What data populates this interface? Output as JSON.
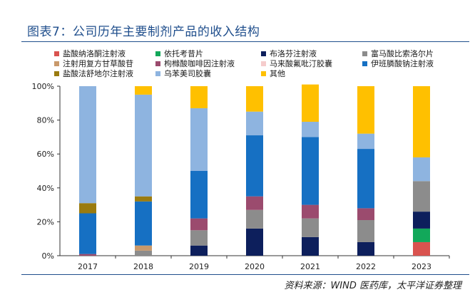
{
  "figure": {
    "title": "图表7：公司历年主要制剂产品的收入结构",
    "source": "资料来源：WIND 医药库，太平洋证券整理"
  },
  "chart_data": {
    "type": "bar",
    "stacked": true,
    "categories": [
      "2017",
      "2018",
      "2019",
      "2020",
      "2021",
      "2022",
      "2023"
    ],
    "ylim": [
      0,
      100
    ],
    "yticks": [
      0,
      20,
      40,
      60,
      80,
      100
    ],
    "ytick_labels": [
      "0%",
      "20%",
      "40%",
      "60%",
      "80%",
      "100%"
    ],
    "grid": false,
    "legend_position": "top",
    "series": [
      {
        "name": "盐酸纳洛酮注射液",
        "color": "#d9534f",
        "values": [
          0,
          0,
          0,
          0,
          0,
          0,
          8
        ]
      },
      {
        "name": "依托考昔片",
        "color": "#12a85a",
        "values": [
          0,
          0,
          0,
          0,
          0,
          0,
          8
        ]
      },
      {
        "name": "布洛芬注射液",
        "color": "#0d1f5c",
        "values": [
          0,
          0,
          6,
          16,
          11,
          8,
          10
        ]
      },
      {
        "name": "富马酸比索洛尔片",
        "color": "#8c8c8c",
        "values": [
          0,
          3,
          9,
          11,
          11,
          13,
          18
        ]
      },
      {
        "name": "注射用复方甘草酸苷",
        "color": "#c9996b",
        "values": [
          0,
          3,
          0,
          0,
          0,
          0,
          0
        ]
      },
      {
        "name": "枸橼酸咖啡因注射液",
        "color": "#9b4b6e",
        "values": [
          1,
          0,
          7,
          8,
          8,
          7,
          0
        ]
      },
      {
        "name": "马来酸氟吡汀胶囊",
        "color": "#f5cccc",
        "values": [
          0,
          0,
          0,
          0,
          0,
          0,
          0
        ]
      },
      {
        "name": "伊班膦酸钠注射液",
        "color": "#1670c3",
        "values": [
          24,
          26,
          28,
          36,
          40,
          35,
          0
        ]
      },
      {
        "name": "盐酸法舒地尔注射液",
        "color": "#9a7b10",
        "values": [
          6,
          3,
          0,
          0,
          0,
          0,
          0
        ]
      },
      {
        "name": "乌苯美司胶囊",
        "color": "#8eb4e0",
        "values": [
          69,
          60,
          37,
          14,
          9,
          9,
          14
        ]
      },
      {
        "name": "其他",
        "color": "#ffc000",
        "values": [
          0,
          5,
          13,
          15,
          22,
          28,
          42
        ]
      }
    ]
  }
}
